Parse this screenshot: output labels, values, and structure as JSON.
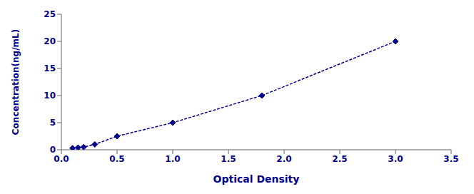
{
  "chart_data": {
    "type": "line",
    "x": [
      0.1,
      0.15,
      0.2,
      0.3,
      0.5,
      1.0,
      1.8,
      3.0
    ],
    "values": [
      0.3,
      0.4,
      0.5,
      1.0,
      2.5,
      5.0,
      10.0,
      20.0
    ],
    "xlabel": "Optical Density",
    "ylabel": "Concentration(ng/mL)",
    "xlim": [
      0,
      3.5
    ],
    "ylim": [
      0,
      25
    ],
    "xticks": [
      {
        "value": 0,
        "label": "0.0"
      },
      {
        "value": 0.5,
        "label": "0.5"
      },
      {
        "value": 1.0,
        "label": "1.0"
      },
      {
        "value": 1.5,
        "label": "1.5"
      },
      {
        "value": 2.0,
        "label": "2.0"
      },
      {
        "value": 2.5,
        "label": "2.5"
      },
      {
        "value": 3.0,
        "label": "3.0"
      },
      {
        "value": 3.5,
        "label": "3.5"
      }
    ],
    "yticks": [
      0,
      5,
      10,
      15,
      20,
      25
    ],
    "color": "#00008B",
    "marker": "diamond",
    "line_style": "dashed",
    "grid": false
  }
}
